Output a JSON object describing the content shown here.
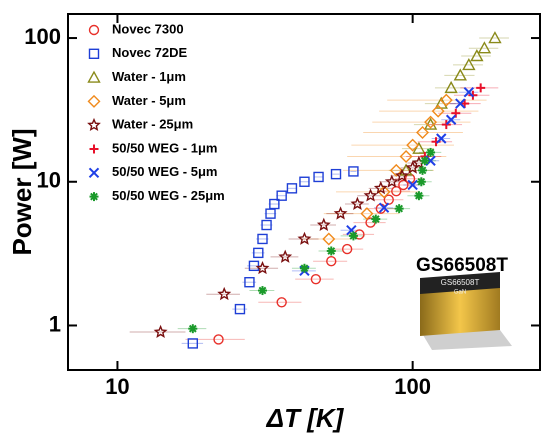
{
  "chart_data": {
    "type": "scatter",
    "x_label": "ΔT [K]",
    "y_label": "Power [W]",
    "annotation": "GS66508T",
    "chip_text": [
      "GS66508T",
      "GaN"
    ],
    "xscale": "log",
    "yscale": "log",
    "xlim": [
      6.8,
      270
    ],
    "ylim": [
      0.49,
      147
    ],
    "xticks": [
      10,
      100
    ],
    "yticks": [
      1,
      10,
      100
    ],
    "legend": "upper left",
    "series": [
      {
        "name": "Novec 7300",
        "color": "#e8302a",
        "marker": "circle",
        "x": [
          22,
          36,
          47,
          53,
          60,
          66,
          72,
          78,
          83,
          88,
          93,
          98
        ],
        "values": [
          0.8,
          1.45,
          2.1,
          2.8,
          3.4,
          4.3,
          5.2,
          6.5,
          7.5,
          8.6,
          9.5,
          10.5
        ],
        "xerr": [
          5,
          6,
          7,
          7,
          8,
          8,
          9,
          9,
          10,
          10,
          11,
          11
        ]
      },
      {
        "name": "Novec 72DE",
        "color": "#1f3fd6",
        "marker": "square",
        "x": [
          18,
          26,
          28,
          29,
          30,
          31,
          32,
          33,
          34,
          36,
          39,
          43,
          48,
          55,
          63
        ],
        "values": [
          0.75,
          1.3,
          2.0,
          2.6,
          3.2,
          4.0,
          5,
          6,
          7,
          8,
          9,
          10,
          10.8,
          11.3,
          11.8
        ],
        "xerr": [
          1.5,
          1.5,
          1.5,
          1.5,
          1.5,
          1.5,
          1.5,
          1.5,
          1.5,
          1.5,
          1.5,
          1.5,
          1.5,
          1.5,
          1.5
        ]
      },
      {
        "name": "Water - 1μm",
        "color": "#8a8a1a",
        "marker": "triangle",
        "x": [
          95,
          105,
          115,
          125,
          135,
          145,
          155,
          165,
          175,
          190
        ],
        "values": [
          12,
          17,
          25,
          35,
          45,
          55,
          65,
          75,
          85,
          100
        ],
        "xerr": [
          12,
          13,
          14,
          15,
          16,
          17,
          18,
          19,
          20,
          22
        ]
      },
      {
        "name": "Water - 5μm",
        "color": "#f08a1c",
        "marker": "diamond",
        "x": [
          52,
          70,
          80,
          88,
          95,
          100,
          108,
          115,
          122,
          130
        ],
        "values": [
          4,
          6,
          8.5,
          12,
          15,
          18,
          22,
          26,
          31,
          37
        ],
        "xerr": [
          10,
          20,
          25,
          30,
          35,
          38,
          40,
          42,
          45,
          48
        ]
      },
      {
        "name": "Water - 25μm",
        "color": "#7a1010",
        "marker": "star",
        "x": [
          14,
          23,
          31,
          37,
          43,
          50,
          57,
          65,
          72,
          78,
          85,
          92,
          100,
          105
        ],
        "values": [
          0.9,
          1.65,
          2.5,
          3,
          4,
          5,
          6,
          7,
          8,
          9,
          10,
          11,
          12.5,
          13.5
        ],
        "xerr": [
          3,
          3,
          4,
          4,
          5,
          5,
          6,
          6,
          7,
          7,
          8,
          8,
          9,
          9
        ]
      },
      {
        "name": "50/50 WEG - 1μm",
        "color": "#e8102a",
        "marker": "plus",
        "x": [
          110,
          120,
          130,
          140,
          150,
          160,
          170
        ],
        "values": [
          15,
          19,
          25,
          30,
          35,
          40,
          45
        ],
        "xerr": [
          15,
          16,
          17,
          18,
          20,
          22,
          25
        ]
      },
      {
        "name": "50/50 WEG - 5μm",
        "color": "#1f3fe6",
        "marker": "x",
        "x": [
          43,
          62,
          80,
          100,
          115,
          125,
          135,
          145,
          155
        ],
        "values": [
          2.4,
          4.6,
          6.6,
          9.5,
          14,
          20,
          27,
          35,
          42
        ],
        "xerr": [
          4,
          5,
          6,
          7,
          8,
          9,
          10,
          11,
          12
        ]
      },
      {
        "name": "50/50 WEG - 25μm",
        "color": "#1a9a2a",
        "marker": "asterisk",
        "x": [
          18,
          31,
          43,
          53,
          63,
          75,
          90,
          105,
          107,
          108,
          110,
          115
        ],
        "values": [
          0.95,
          1.75,
          2.5,
          3.3,
          4.2,
          5.5,
          6.5,
          8,
          10,
          12,
          14,
          16
        ],
        "xerr": [
          2,
          3,
          4,
          5,
          6,
          7,
          8,
          9,
          9,
          9,
          10,
          10
        ]
      }
    ]
  }
}
